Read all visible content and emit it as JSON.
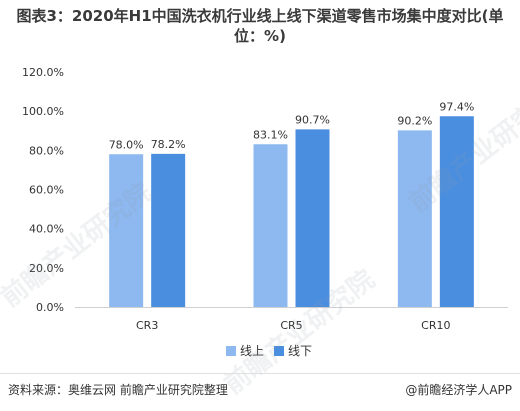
{
  "title": "图表3：2020年H1中国洗衣机行业线上线下渠道零售市场集中度对比(单位：%)",
  "source": "资料来源：奥维云网 前瞻产业研究院整理",
  "credit": "@前瞻经济学人APP",
  "watermark": "前瞻产业研究院",
  "colors": {
    "online": "#8db8f0",
    "offline": "#4a8ee0",
    "axis": "#d0d0d0",
    "text": "#333333"
  },
  "chart_data": {
    "type": "bar",
    "categories": [
      "CR3",
      "CR5",
      "CR10"
    ],
    "series": [
      {
        "name": "线上",
        "values": [
          78.0,
          83.1,
          90.2
        ],
        "labels": [
          "78.0%",
          "83.1%",
          "90.2%"
        ]
      },
      {
        "name": "线下",
        "values": [
          78.2,
          90.7,
          97.4
        ],
        "labels": [
          "78.2%",
          "90.7%",
          "97.4%"
        ]
      }
    ],
    "ylim": [
      0,
      120
    ],
    "yticks": [
      "0.0%",
      "20.0%",
      "40.0%",
      "60.0%",
      "80.0%",
      "100.0%",
      "120.0%"
    ],
    "grid": false,
    "legend_position": "bottom"
  }
}
